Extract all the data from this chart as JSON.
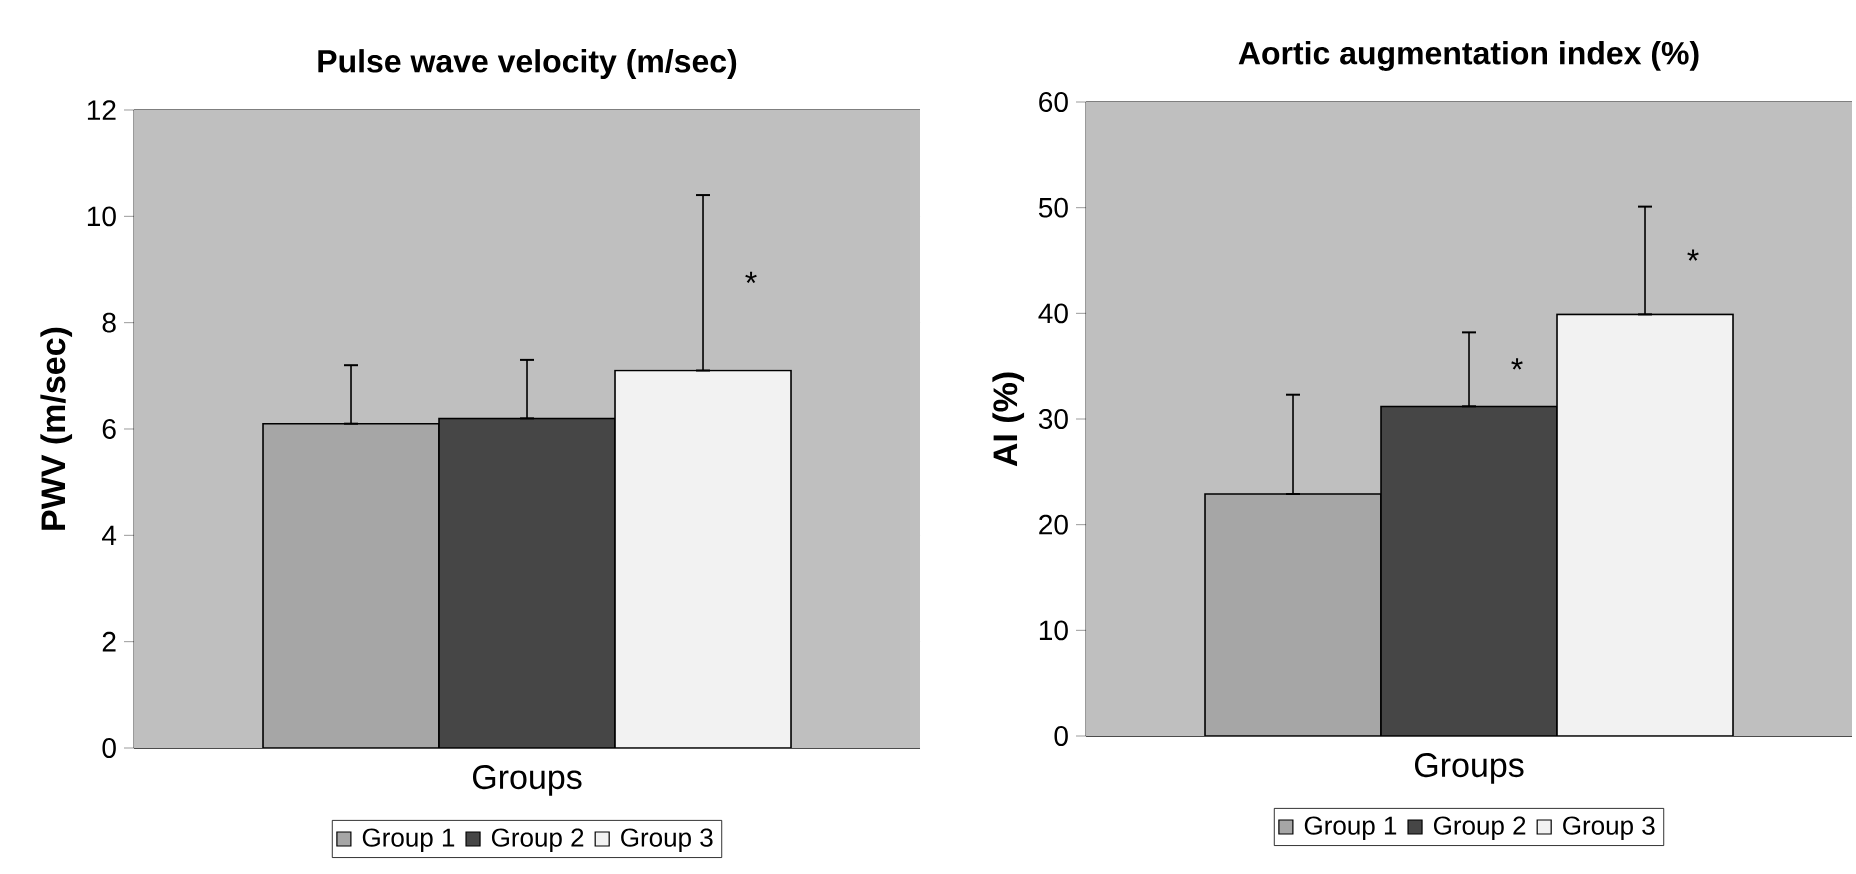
{
  "chart_data": [
    {
      "type": "bar",
      "title": "Pulse wave velocity (m/sec)",
      "ylabel": "PWV (m/sec)",
      "categories": [
        "Groups"
      ],
      "series": [
        {
          "name": "Group 1",
          "color": "#a6a6a6",
          "values": [
            6.1
          ],
          "errors": [
            [
              6.1,
              7.2
            ]
          ]
        },
        {
          "name": "Group 2",
          "color": "#464646",
          "values": [
            6.2
          ],
          "errors": [
            [
              6.2,
              7.3
            ]
          ]
        },
        {
          "name": "Group 3",
          "color": "#f2f2f2",
          "values": [
            7.1
          ],
          "errors": [
            [
              7.1,
              10.4
            ]
          ]
        }
      ],
      "ylim": [
        0,
        12
      ],
      "yticks": [
        0,
        2,
        4,
        6,
        8,
        10,
        12
      ],
      "grid": "y",
      "legend": "bottom",
      "annotations": [
        "*"
      ]
    },
    {
      "type": "bar",
      "title": "Aortic augmentation index (%)",
      "ylabel": "AI (%)",
      "categories": [
        "Groups"
      ],
      "series": [
        {
          "name": "Group 1",
          "color": "#a6a6a6",
          "values": [
            22.9
          ],
          "errors": [
            [
              22.9,
              32.3
            ]
          ]
        },
        {
          "name": "Group 2",
          "color": "#464646",
          "values": [
            31.2
          ],
          "errors": [
            [
              31.2,
              38.2
            ]
          ]
        },
        {
          "name": "Group 3",
          "color": "#f2f2f2",
          "values": [
            39.9
          ],
          "errors": [
            [
              39.9,
              50.1
            ]
          ]
        }
      ],
      "ylim": [
        0,
        60
      ],
      "yticks": [
        0,
        10,
        20,
        30,
        40,
        50,
        60
      ],
      "grid": "y",
      "legend": "bottom",
      "annotations": [
        "*",
        "*"
      ]
    }
  ]
}
